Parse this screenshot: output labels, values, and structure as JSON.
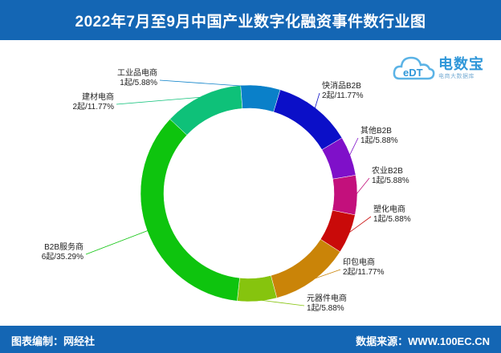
{
  "header": {
    "title": "2022年7月至9月中国产业数字化融资事件数行业图"
  },
  "logo": {
    "mark_text": "eDT",
    "brand_text": "电数宝",
    "sub_text": "电商大数据库"
  },
  "footer": {
    "editor": "图表编制：网经社",
    "source": "数据来源：WWW.100EC.CN"
  },
  "chart_data": {
    "type": "pie",
    "variant": "donut",
    "title": "2022年7月至9月中国产业数字化融资事件数行业图",
    "unit": "起",
    "start_angle_deg": 16.8,
    "slices": [
      {
        "name": "快消品B2B",
        "value": 2,
        "percent": "11.77%",
        "label": "2起/11.77%",
        "color": "#0b0fc8",
        "label_side": "right"
      },
      {
        "name": "其他B2B",
        "value": 1,
        "percent": "5.88%",
        "label": "1起/5.88%",
        "color": "#7f10c9",
        "label_side": "right"
      },
      {
        "name": "农业B2B",
        "value": 1,
        "percent": "5.88%",
        "label": "1起/5.88%",
        "color": "#c3107c",
        "label_side": "right"
      },
      {
        "name": "塑化电商",
        "value": 1,
        "percent": "5.88%",
        "label": "1起/5.88%",
        "color": "#c90a09",
        "label_side": "right"
      },
      {
        "name": "印包电商",
        "value": 2,
        "percent": "11.77%",
        "label": "2起/11.77%",
        "color": "#ca8408",
        "label_side": "right"
      },
      {
        "name": "元器件电商",
        "value": 1,
        "percent": "5.88%",
        "label": "1起/5.88%",
        "color": "#86c40e",
        "label_side": "right"
      },
      {
        "name": "B2B服务商",
        "value": 6,
        "percent": "35.29%",
        "label": "6起/35.29%",
        "color": "#0ec40e",
        "label_side": "left"
      },
      {
        "name": "建材电商",
        "value": 2,
        "percent": "11.77%",
        "label": "2起/11.77%",
        "color": "#0ec179",
        "label_side": "left"
      },
      {
        "name": "工业品电商",
        "value": 1,
        "percent": "5.88%",
        "label": "1起/5.88%",
        "color": "#0a80c9",
        "label_side": "left"
      }
    ]
  }
}
